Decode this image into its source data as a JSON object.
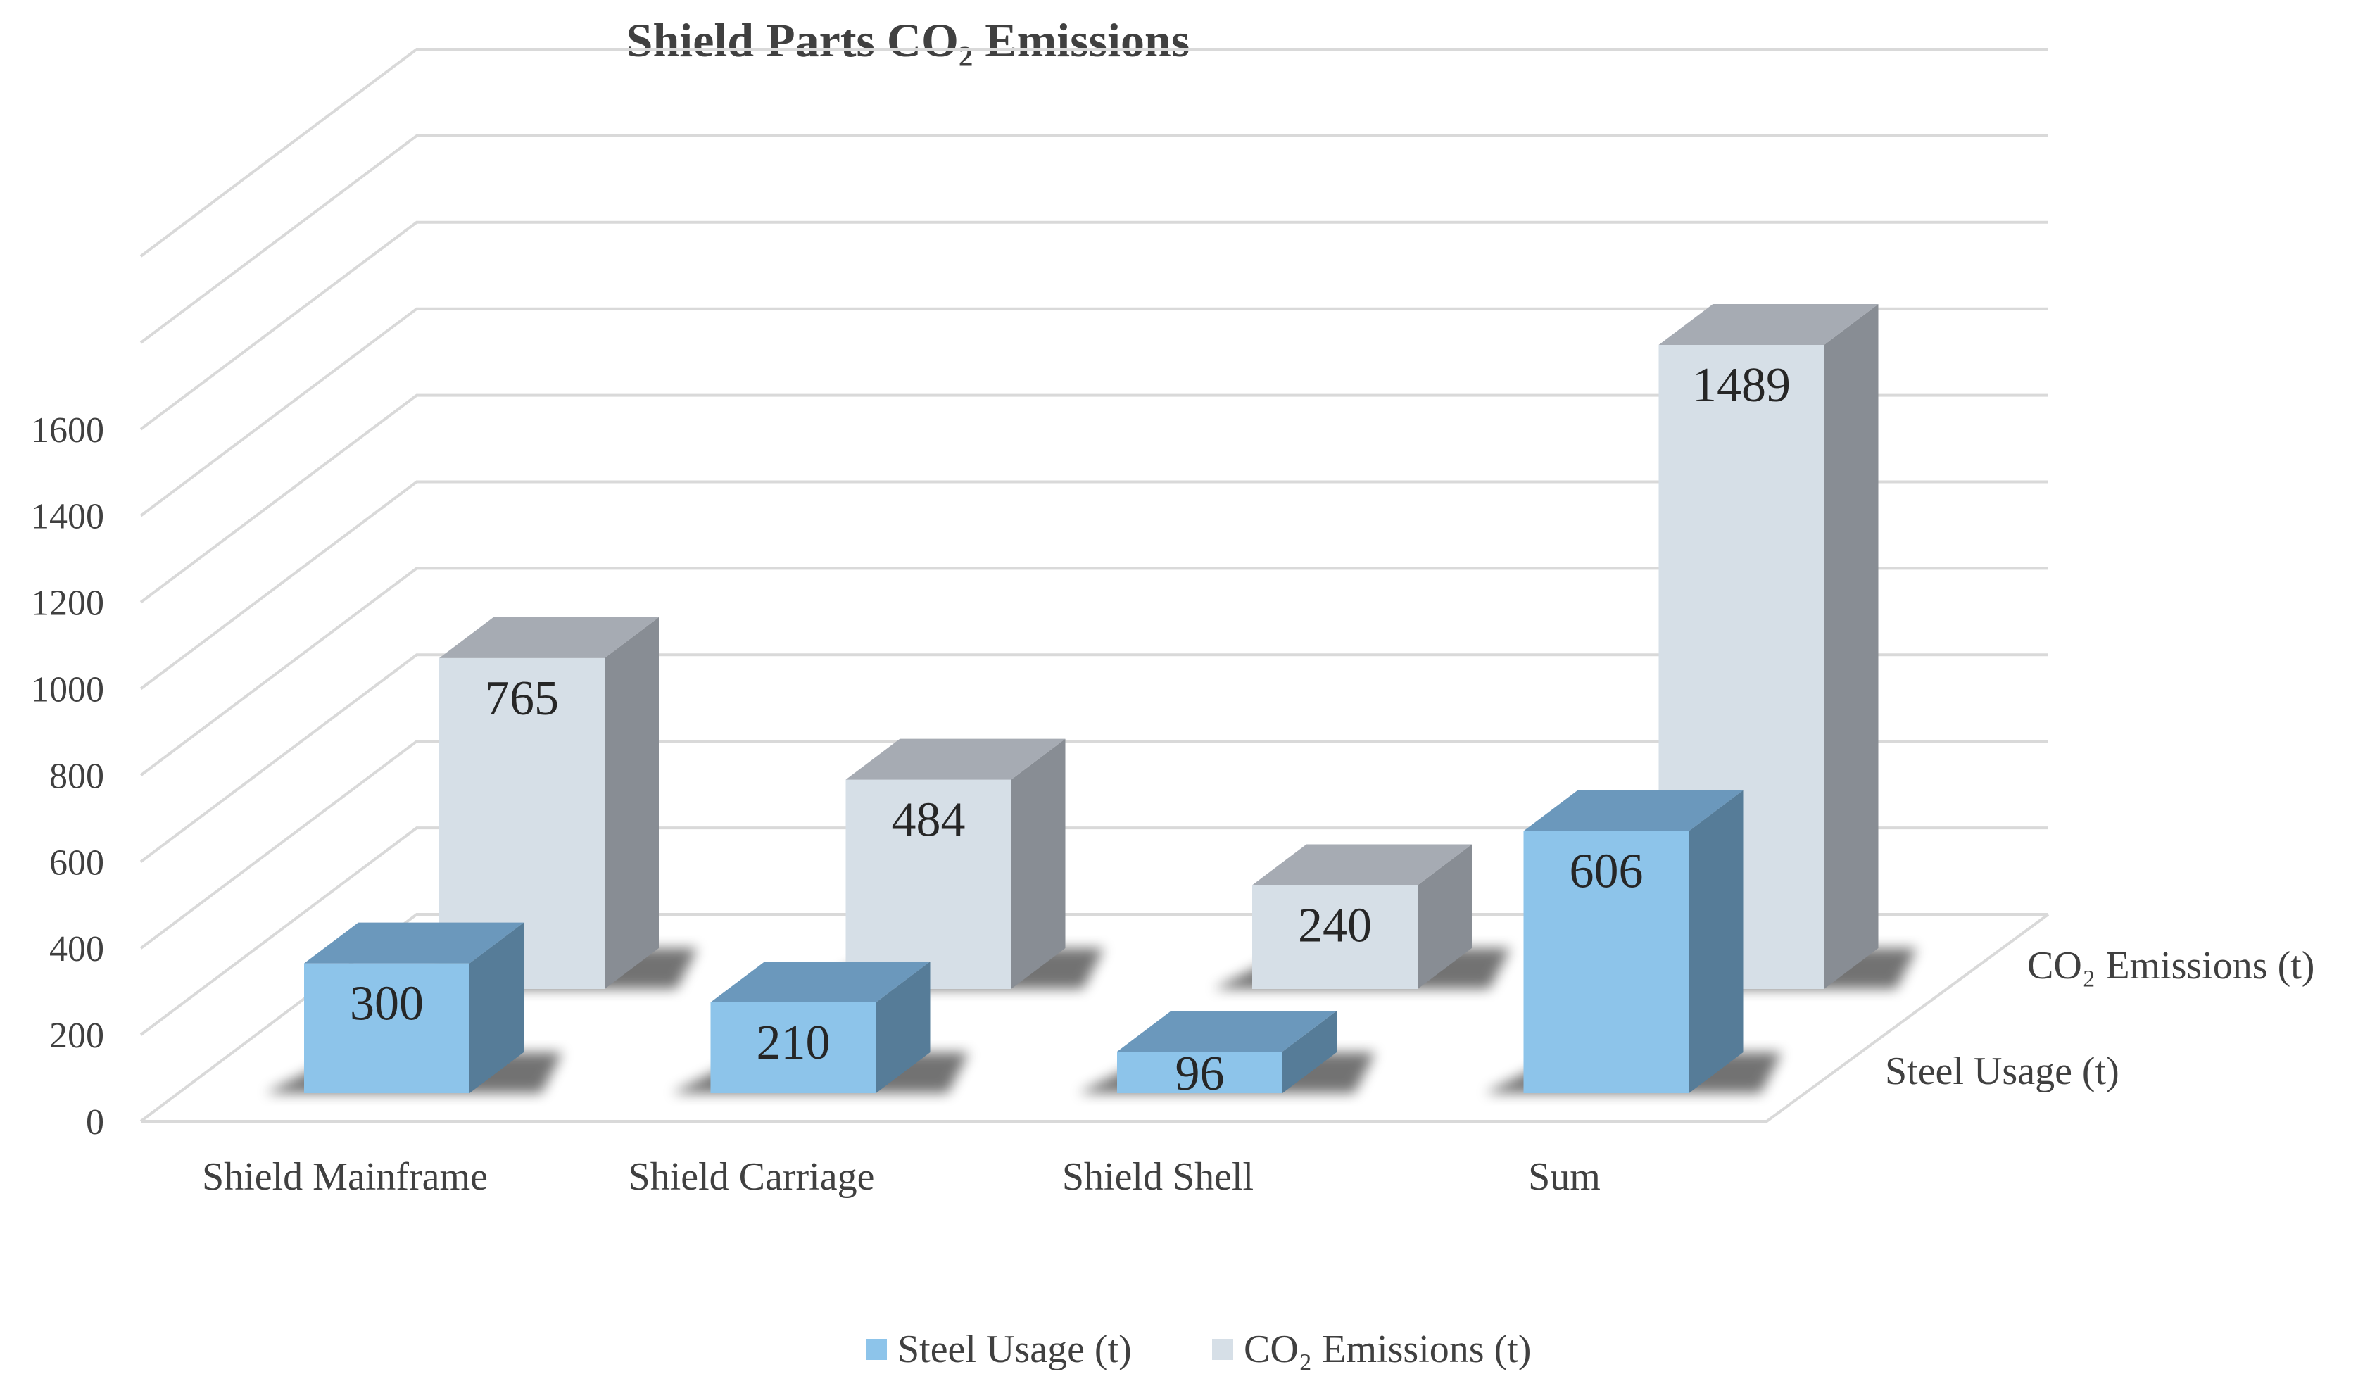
{
  "chart_data": {
    "type": "bar",
    "subtype": "3d-clustered-depth",
    "title": "Shield Parts CO₂ Emissions",
    "categories": [
      "Shield Mainframe",
      "Shield Carriage",
      "Shield Shell",
      "Sum"
    ],
    "series": [
      {
        "name": "Steel Usage (t)",
        "values": [
          300,
          210,
          96,
          606
        ]
      },
      {
        "name": "CO₂ Emissions (t)",
        "values": [
          765,
          484,
          240,
          1489
        ]
      }
    ],
    "y_ticks": [
      "0",
      "200",
      "400",
      "600",
      "800",
      "1000",
      "1200",
      "1400",
      "1600"
    ],
    "ylim": [
      0,
      2000
    ],
    "grid": true,
    "legend_position": "bottom"
  },
  "colors": {
    "steel_front": "#8dc4ea",
    "steel_top": "#6b98bc",
    "steel_side": "#567c98",
    "co2_front": "#d6dfe7",
    "co2_top": "#a6abb3",
    "co2_side": "#888d94"
  }
}
